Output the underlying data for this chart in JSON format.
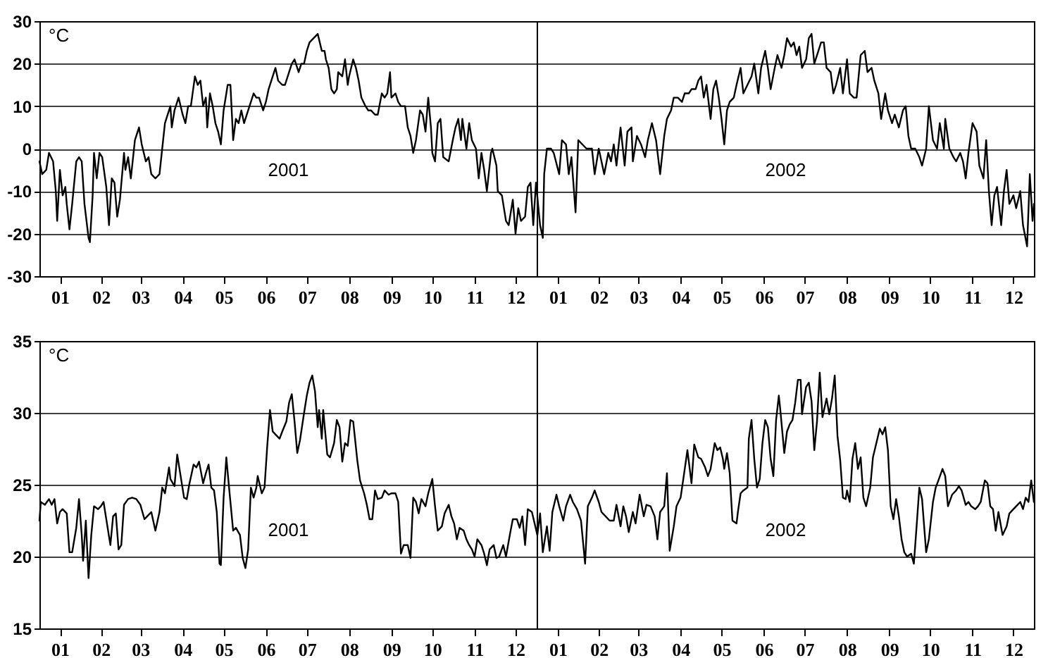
{
  "chart_data": [
    {
      "type": "line",
      "ylabel": "°C",
      "xlim": [
        "2001-01-01",
        "2002-12-31"
      ],
      "ylim": [
        -30,
        30
      ],
      "yticks": [
        -30,
        -20,
        -10,
        0,
        10,
        20,
        30
      ],
      "grid": "y",
      "xticks": [
        {
          "value": "2001-01-16",
          "label": "01"
        },
        {
          "value": "2001-02-15",
          "label": "02"
        },
        {
          "value": "2001-03-16",
          "label": "03"
        },
        {
          "value": "2001-04-16",
          "label": "04"
        },
        {
          "value": "2001-05-16",
          "label": "05"
        },
        {
          "value": "2001-06-16",
          "label": "06"
        },
        {
          "value": "2001-07-16",
          "label": "07"
        },
        {
          "value": "2001-08-16",
          "label": "08"
        },
        {
          "value": "2001-09-16",
          "label": "09"
        },
        {
          "value": "2001-10-16",
          "label": "10"
        },
        {
          "value": "2001-11-16",
          "label": "11"
        },
        {
          "value": "2001-12-16",
          "label": "12"
        },
        {
          "value": "2002-01-16",
          "label": "01"
        },
        {
          "value": "2002-02-15",
          "label": "02"
        },
        {
          "value": "2002-03-16",
          "label": "03"
        },
        {
          "value": "2002-04-16",
          "label": "04"
        },
        {
          "value": "2002-05-16",
          "label": "05"
        },
        {
          "value": "2002-06-16",
          "label": "06"
        },
        {
          "value": "2002-07-16",
          "label": "07"
        },
        {
          "value": "2002-08-16",
          "label": "08"
        },
        {
          "value": "2002-09-16",
          "label": "09"
        },
        {
          "value": "2002-10-16",
          "label": "10"
        },
        {
          "value": "2002-11-16",
          "label": "11"
        },
        {
          "value": "2002-12-16",
          "label": "12"
        }
      ],
      "ref_lines": [
        {
          "axis": "x",
          "value": "2002-01-01",
          "color": "#000000"
        }
      ],
      "annotations": [
        "2001",
        "2002"
      ],
      "x": [
        "2001-01-01",
        "2001-01-03",
        "2001-01-06",
        "2001-01-08",
        "2001-01-11",
        "2001-01-13",
        "2001-01-14",
        "2001-01-16",
        "2001-01-18",
        "2001-01-20",
        "2001-01-21",
        "2001-01-23",
        "2001-01-25",
        "2001-01-28",
        "2001-01-30",
        "2001-02-01",
        "2001-02-03",
        "2001-02-06",
        "2001-02-07",
        "2001-02-09",
        "2001-02-10",
        "2001-02-12",
        "2001-02-14",
        "2001-02-16",
        "2001-02-19",
        "2001-02-21",
        "2001-02-23",
        "2001-02-25",
        "2001-02-27",
        "2001-03-01",
        "2001-03-04",
        "2001-03-05",
        "2001-03-07",
        "2001-03-09",
        "2001-03-12",
        "2001-03-15",
        "2001-03-17",
        "2001-03-20",
        "2001-03-22",
        "2001-03-24",
        "2001-03-27",
        "2001-03-30",
        "2001-04-01",
        "2001-04-03",
        "2001-04-05",
        "2001-04-07",
        "2001-04-08",
        "2001-04-10",
        "2001-04-13",
        "2001-04-16",
        "2001-04-18",
        "2001-04-20",
        "2001-04-22",
        "2001-04-25",
        "2001-04-27",
        "2001-04-29",
        "2001-05-01",
        "2001-05-03",
        "2001-05-04",
        "2001-05-06",
        "2001-05-08",
        "2001-05-10",
        "2001-05-12",
        "2001-05-14",
        "2001-05-16",
        "2001-05-19",
        "2001-05-21",
        "2001-05-23",
        "2001-05-25",
        "2001-05-27",
        "2001-05-29",
        "2001-05-31",
        "2001-06-02",
        "2001-06-04",
        "2001-06-07",
        "2001-06-09",
        "2001-06-11",
        "2001-06-14",
        "2001-06-16",
        "2001-06-18",
        "2001-06-20",
        "2001-06-23",
        "2001-06-25",
        "2001-06-28",
        "2001-06-30",
        "2001-07-03",
        "2001-07-05",
        "2001-07-07",
        "2001-07-10",
        "2001-07-12",
        "2001-07-14",
        "2001-07-16",
        "2001-07-18",
        "2001-07-21",
        "2001-07-24",
        "2001-07-27",
        "2001-07-29",
        "2001-07-30",
        "2001-08-01",
        "2001-08-03",
        "2001-08-05",
        "2001-08-07",
        "2001-08-08",
        "2001-08-11",
        "2001-08-13",
        "2001-08-15",
        "2001-08-16",
        "2001-08-19",
        "2001-08-21",
        "2001-08-23",
        "2001-08-25",
        "2001-08-28",
        "2001-08-30",
        "2001-09-01",
        "2001-09-04",
        "2001-09-06",
        "2001-09-09",
        "2001-09-11",
        "2001-09-13",
        "2001-09-15",
        "2001-09-16",
        "2001-09-19",
        "2001-09-21",
        "2001-09-23",
        "2001-09-26",
        "2001-09-28",
        "2001-09-30",
        "2001-10-02",
        "2001-10-04",
        "2001-10-07",
        "2001-10-09",
        "2001-10-11",
        "2001-10-13",
        "2001-10-15",
        "2001-10-16",
        "2001-10-18",
        "2001-10-20",
        "2001-10-22",
        "2001-10-24",
        "2001-10-28",
        "2001-10-31",
        "2001-11-02",
        "2001-11-04",
        "2001-11-06",
        "2001-11-07",
        "2001-11-10",
        "2001-11-12",
        "2001-11-14",
        "2001-11-17",
        "2001-11-19",
        "2001-11-21",
        "2001-11-23",
        "2001-11-25",
        "2001-11-28",
        "2001-11-29",
        "2001-12-02",
        "2001-12-03",
        "2001-12-06",
        "2001-12-09",
        "2001-12-11",
        "2001-12-14",
        "2001-12-16",
        "2001-12-18",
        "2001-12-20",
        "2001-12-23",
        "2001-12-25",
        "2001-12-27",
        "2001-12-29",
        "2001-12-31",
        "2002-01-03",
        "2002-01-05",
        "2002-01-06",
        "2002-01-08",
        "2002-01-11",
        "2002-01-13",
        "2002-01-17",
        "2002-01-19",
        "2002-01-22",
        "2002-01-24",
        "2002-01-26",
        "2002-01-29",
        "2002-01-31",
        "2002-02-03",
        "2002-02-06",
        "2002-02-10",
        "2002-02-12",
        "2002-02-15",
        "2002-02-17",
        "2002-02-19",
        "2002-02-22",
        "2002-02-24",
        "2002-02-26",
        "2002-02-28",
        "2002-03-03",
        "2002-03-06",
        "2002-03-08",
        "2002-03-11",
        "2002-03-12",
        "2002-03-15",
        "2002-03-18",
        "2002-03-21",
        "2002-03-23",
        "2002-03-26",
        "2002-03-29",
        "2002-04-01",
        "2002-04-04",
        "2002-04-06",
        "2002-04-09",
        "2002-04-11",
        "2002-04-14",
        "2002-04-17",
        "2002-04-19",
        "2002-04-22",
        "2002-04-24",
        "2002-04-27",
        "2002-04-29",
        "2002-05-01",
        "2002-05-03",
        "2002-05-05",
        "2002-05-08",
        "2002-05-10",
        "2002-05-12",
        "2002-05-14",
        "2002-05-16",
        "2002-05-18",
        "2002-05-20",
        "2002-05-22",
        "2002-05-25",
        "2002-05-27",
        "2002-05-30",
        "2002-06-01",
        "2002-06-04",
        "2002-06-07",
        "2002-06-09",
        "2002-06-12",
        "2002-06-14",
        "2002-06-17",
        "2002-06-19",
        "2002-06-21",
        "2002-06-24",
        "2002-06-26",
        "2002-06-29",
        "2002-07-01",
        "2002-07-03",
        "2002-07-06",
        "2002-07-08",
        "2002-07-10",
        "2002-07-12",
        "2002-07-14",
        "2002-07-17",
        "2002-07-19",
        "2002-07-21",
        "2002-07-23",
        "2002-07-25",
        "2002-07-28",
        "2002-07-30",
        "2002-08-01",
        "2002-08-04",
        "2002-08-06",
        "2002-08-08",
        "2002-08-11",
        "2002-08-13",
        "2002-08-16",
        "2002-08-18",
        "2002-08-21",
        "2002-08-23",
        "2002-08-26",
        "2002-08-29",
        "2002-08-31",
        "2002-09-03",
        "2002-09-05",
        "2002-09-08",
        "2002-09-10",
        "2002-09-13",
        "2002-09-15",
        "2002-09-18",
        "2002-09-20",
        "2002-09-23",
        "2002-09-26",
        "2002-09-28",
        "2002-09-30",
        "2002-10-02",
        "2002-10-05",
        "2002-10-08",
        "2002-10-10",
        "2002-10-13",
        "2002-10-15",
        "2002-10-18",
        "2002-10-21",
        "2002-10-23",
        "2002-10-26",
        "2002-10-27",
        "2002-10-30",
        "2002-11-02",
        "2002-11-04",
        "2002-11-07",
        "2002-11-09",
        "2002-11-11",
        "2002-11-13",
        "2002-11-16",
        "2002-11-19",
        "2002-11-21",
        "2002-11-24",
        "2002-11-26",
        "2002-11-28",
        "2002-11-30",
        "2002-12-02",
        "2002-12-04",
        "2002-12-07",
        "2002-12-09",
        "2002-12-11",
        "2002-12-13",
        "2002-12-16",
        "2002-12-18",
        "2002-12-21",
        "2002-12-23",
        "2002-12-26",
        "2002-12-28",
        "2002-12-30",
        "2002-12-31"
      ],
      "series": [
        {
          "color": "#000000",
          "values": [
            -3,
            -6,
            -5,
            -1,
            -3,
            -10,
            -17,
            -5,
            -11,
            -9,
            -13,
            -19,
            -13,
            -3,
            -2,
            -3,
            -13,
            -21,
            -22,
            -11,
            -1,
            -7,
            -1,
            -2,
            -9,
            -18,
            -7,
            -8,
            -16,
            -12,
            -1,
            -5,
            -2,
            -7,
            2,
            5,
            1,
            -3,
            -2,
            -6,
            -7,
            -6,
            0,
            6,
            8,
            10,
            5,
            9,
            12,
            8,
            6,
            10,
            10,
            17,
            15,
            16,
            10,
            12,
            5,
            13,
            10,
            6,
            4,
            1,
            9,
            15,
            15,
            2,
            7,
            6,
            9,
            6,
            8,
            10,
            13,
            12,
            12,
            9,
            11,
            14,
            16,
            19,
            16,
            15,
            15,
            18,
            20,
            21,
            18,
            20,
            20,
            23,
            25,
            26,
            27,
            23,
            23,
            21,
            19,
            14,
            13,
            14,
            18,
            17,
            21,
            15,
            17,
            21,
            19,
            16,
            12,
            10,
            9,
            9,
            8,
            8,
            13,
            12,
            13,
            18,
            12,
            13,
            11,
            10,
            10,
            5,
            3,
            -1,
            2,
            9,
            8,
            4,
            12,
            5,
            -1,
            -3,
            6,
            7,
            -2,
            -3,
            2,
            5,
            7,
            2,
            7,
            0,
            6,
            2,
            0,
            -7,
            -1,
            -5,
            -10,
            -1,
            0,
            -4,
            -10,
            -11,
            -17,
            -18,
            -12,
            -20,
            -14,
            -17,
            -16,
            -9,
            -8,
            -18,
            -8,
            -18,
            -21,
            -6,
            0,
            0,
            -1,
            -6,
            2,
            1,
            -6,
            -2,
            -15,
            2,
            1,
            0,
            0,
            -6,
            0,
            -3,
            -6,
            -1,
            -3,
            1,
            -4,
            5,
            -4,
            4,
            5,
            -3,
            3,
            1,
            -2,
            2,
            6,
            2,
            -6,
            3,
            7,
            9,
            12,
            12,
            11,
            13,
            13,
            14,
            14,
            16,
            17,
            12,
            15,
            7,
            14,
            16,
            12,
            7,
            1,
            9,
            11,
            12,
            15,
            19,
            13,
            15,
            17,
            20,
            13,
            19,
            23,
            19,
            14,
            19,
            22,
            19,
            22,
            26,
            24,
            25,
            22,
            24,
            19,
            21,
            26,
            27,
            20,
            22,
            25,
            25,
            19,
            18,
            13,
            15,
            19,
            13,
            21,
            13,
            12,
            12,
            22,
            23,
            18,
            19,
            16,
            13,
            7,
            13,
            9,
            6,
            8,
            5,
            9,
            10,
            3,
            0,
            0,
            -2,
            -4,
            0,
            10,
            2,
            0,
            6,
            0,
            7,
            0,
            -2,
            -3,
            -1,
            -3,
            -7,
            -1,
            6,
            4,
            -4,
            -7,
            2,
            -10,
            -18,
            -11,
            -9,
            -18,
            -10,
            -5,
            -13,
            -11,
            -14,
            -10,
            -18,
            -23,
            -6,
            -17,
            -13
          ]
        }
      ]
    },
    {
      "type": "line",
      "ylabel": "°C",
      "xlim": [
        "2001-01-01",
        "2002-12-31"
      ],
      "ylim": [
        15,
        35
      ],
      "yticks": [
        15,
        20,
        25,
        30,
        35
      ],
      "grid": "y",
      "xticks": [
        {
          "value": "2001-01-16",
          "label": "01"
        },
        {
          "value": "2001-02-15",
          "label": "02"
        },
        {
          "value": "2001-03-16",
          "label": "03"
        },
        {
          "value": "2001-04-16",
          "label": "04"
        },
        {
          "value": "2001-05-16",
          "label": "05"
        },
        {
          "value": "2001-06-16",
          "label": "06"
        },
        {
          "value": "2001-07-16",
          "label": "07"
        },
        {
          "value": "2001-08-16",
          "label": "08"
        },
        {
          "value": "2001-09-16",
          "label": "09"
        },
        {
          "value": "2001-10-16",
          "label": "10"
        },
        {
          "value": "2001-11-16",
          "label": "11"
        },
        {
          "value": "2001-12-16",
          "label": "12"
        },
        {
          "value": "2002-01-16",
          "label": "01"
        },
        {
          "value": "2002-02-15",
          "label": "02"
        },
        {
          "value": "2002-03-16",
          "label": "03"
        },
        {
          "value": "2002-04-16",
          "label": "04"
        },
        {
          "value": "2002-05-16",
          "label": "05"
        },
        {
          "value": "2002-06-16",
          "label": "06"
        },
        {
          "value": "2002-07-16",
          "label": "07"
        },
        {
          "value": "2002-08-16",
          "label": "08"
        },
        {
          "value": "2002-09-16",
          "label": "09"
        },
        {
          "value": "2002-10-16",
          "label": "10"
        },
        {
          "value": "2002-11-16",
          "label": "11"
        },
        {
          "value": "2002-12-16",
          "label": "12"
        }
      ],
      "ref_lines": [
        {
          "axis": "x",
          "value": "2002-01-01",
          "color": "#000000"
        }
      ],
      "annotations": [
        "2001",
        "2002"
      ],
      "x": [
        "2001-01-01",
        "2001-01-02",
        "2001-01-05",
        "2001-01-08",
        "2001-01-10",
        "2001-01-12",
        "2001-01-14",
        "2001-01-16",
        "2001-01-18",
        "2001-01-21",
        "2001-01-23",
        "2001-01-25",
        "2001-01-28",
        "2001-01-30",
        "2001-02-01",
        "2001-02-02",
        "2001-02-04",
        "2001-02-06",
        "2001-02-08",
        "2001-02-10",
        "2001-02-13",
        "2001-02-15",
        "2001-02-17",
        "2001-02-19",
        "2001-02-22",
        "2001-02-24",
        "2001-02-26",
        "2001-02-28",
        "2001-03-02",
        "2001-03-04",
        "2001-03-07",
        "2001-03-10",
        "2001-03-13",
        "2001-03-16",
        "2001-03-19",
        "2001-03-21",
        "2001-03-24",
        "2001-03-27",
        "2001-03-30",
        "2001-04-01",
        "2001-04-03",
        "2001-04-06",
        "2001-04-07",
        "2001-04-10",
        "2001-04-12",
        "2001-04-14",
        "2001-04-17",
        "2001-04-19",
        "2001-04-21",
        "2001-04-24",
        "2001-04-26",
        "2001-04-28",
        "2001-05-01",
        "2001-05-03",
        "2001-05-05",
        "2001-05-07",
        "2001-05-09",
        "2001-05-11",
        "2001-05-13",
        "2001-05-14",
        "2001-05-16",
        "2001-05-18",
        "2001-05-20",
        "2001-05-23",
        "2001-05-25",
        "2001-05-28",
        "2001-05-30",
        "2001-06-01",
        "2001-06-03",
        "2001-06-05",
        "2001-06-07",
        "2001-06-09",
        "2001-06-10",
        "2001-06-13",
        "2001-06-15",
        "2001-06-17",
        "2001-06-19",
        "2001-06-21",
        "2001-06-24",
        "2001-06-26",
        "2001-06-28",
        "2001-07-01",
        "2001-07-03",
        "2001-07-05",
        "2001-07-07",
        "2001-07-09",
        "2001-07-11",
        "2001-07-14",
        "2001-07-16",
        "2001-07-18",
        "2001-07-20",
        "2001-07-22",
        "2001-07-24",
        "2001-07-25",
        "2001-07-27",
        "2001-07-28",
        "2001-07-31",
        "2001-08-02",
        "2001-08-05",
        "2001-08-07",
        "2001-08-09",
        "2001-08-11",
        "2001-08-13",
        "2001-08-15",
        "2001-08-17",
        "2001-08-19",
        "2001-08-22",
        "2001-08-24",
        "2001-08-27",
        "2001-08-29",
        "2001-08-31",
        "2001-09-02",
        "2001-09-04",
        "2001-09-06",
        "2001-09-09",
        "2001-09-11",
        "2001-09-14",
        "2001-09-16",
        "2001-09-19",
        "2001-09-21",
        "2001-09-23",
        "2001-09-25",
        "2001-09-28",
        "2001-09-30",
        "2001-10-02",
        "2001-10-04",
        "2001-10-06",
        "2001-10-08",
        "2001-10-11",
        "2001-10-13",
        "2001-10-16",
        "2001-10-18",
        "2001-10-20",
        "2001-10-23",
        "2001-10-25",
        "2001-10-28",
        "2001-10-30",
        "2001-11-01",
        "2001-11-03",
        "2001-11-05",
        "2001-11-08",
        "2001-11-10",
        "2001-11-12",
        "2001-11-14",
        "2001-11-16",
        "2001-11-18",
        "2001-11-21",
        "2001-11-23",
        "2001-11-25",
        "2001-11-27",
        "2001-11-30",
        "2001-12-02",
        "2001-12-04",
        "2001-12-07",
        "2001-12-09",
        "2001-12-12",
        "2001-12-14",
        "2001-12-17",
        "2001-12-19",
        "2001-12-21",
        "2001-12-23",
        "2001-12-25",
        "2001-12-28",
        "2002-01-01",
        "2002-01-03",
        "2002-01-05",
        "2002-01-08",
        "2002-01-10",
        "2002-01-12",
        "2002-01-15",
        "2002-01-17",
        "2002-01-20",
        "2002-01-22",
        "2002-01-25",
        "2002-01-27",
        "2002-01-30",
        "2002-02-02",
        "2002-02-03",
        "2002-02-05",
        "2002-02-07",
        "2002-02-10",
        "2002-02-12",
        "2002-02-15",
        "2002-02-17",
        "2002-02-20",
        "2002-02-23",
        "2002-02-26",
        "2002-02-28",
        "2002-03-03",
        "2002-03-05",
        "2002-03-07",
        "2002-03-09",
        "2002-03-12",
        "2002-03-14",
        "2002-03-17",
        "2002-03-20",
        "2002-03-22",
        "2002-03-25",
        "2002-03-28",
        "2002-03-30",
        "2002-04-01",
        "2002-04-04",
        "2002-04-06",
        "2002-04-08",
        "2002-04-11",
        "2002-04-13",
        "2002-04-16",
        "2002-04-18",
        "2002-04-21",
        "2002-04-24",
        "2002-04-26",
        "2002-04-29",
        "2002-05-01",
        "2002-05-04",
        "2002-05-06",
        "2002-05-08",
        "2002-05-11",
        "2002-05-13",
        "2002-05-15",
        "2002-05-17",
        "2002-05-18",
        "2002-05-20",
        "2002-05-22",
        "2002-05-24",
        "2002-05-27",
        "2002-05-28",
        "2002-05-30",
        "2002-06-01",
        "2002-06-04",
        "2002-06-05",
        "2002-06-07",
        "2002-06-09",
        "2002-06-11",
        "2002-06-13",
        "2002-06-15",
        "2002-06-17",
        "2002-06-19",
        "2002-06-21",
        "2002-06-23",
        "2002-06-25",
        "2002-06-27",
        "2002-06-28",
        "2002-07-01",
        "2002-07-03",
        "2002-07-05",
        "2002-07-07",
        "2002-07-09",
        "2002-07-11",
        "2002-07-13",
        "2002-07-14",
        "2002-07-17",
        "2002-07-19",
        "2002-07-21",
        "2002-07-23",
        "2002-07-25",
        "2002-07-27",
        "2002-07-29",
        "2002-08-01",
        "2002-08-03",
        "2002-08-05",
        "2002-08-07",
        "2002-08-09",
        "2002-08-11",
        "2002-08-13",
        "2002-08-15",
        "2002-08-16",
        "2002-08-18",
        "2002-08-20",
        "2002-08-22",
        "2002-08-24",
        "2002-08-26",
        "2002-08-28",
        "2002-08-30",
        "2002-09-02",
        "2002-09-04",
        "2002-09-06",
        "2002-09-09",
        "2002-09-11",
        "2002-09-13",
        "2002-09-15",
        "2002-09-17",
        "2002-09-19",
        "2002-09-21",
        "2002-09-23",
        "2002-09-25",
        "2002-09-27",
        "2002-09-29",
        "2002-10-02",
        "2002-10-04",
        "2002-10-06",
        "2002-10-08",
        "2002-10-10",
        "2002-10-13",
        "2002-10-15",
        "2002-10-18",
        "2002-10-20",
        "2002-10-22",
        "2002-10-25",
        "2002-10-27",
        "2002-10-29",
        "2002-11-01",
        "2002-11-04",
        "2002-11-06",
        "2002-11-08",
        "2002-11-11",
        "2002-11-13",
        "2002-11-15",
        "2002-11-18",
        "2002-11-20",
        "2002-11-22",
        "2002-11-25",
        "2002-11-27",
        "2002-11-29",
        "2002-12-01",
        "2002-12-03",
        "2002-12-05",
        "2002-12-08",
        "2002-12-11",
        "2002-12-13",
        "2002-12-16",
        "2002-12-18",
        "2002-12-21",
        "2002-12-23",
        "2002-12-25",
        "2002-12-27",
        "2002-12-29",
        "2002-12-31"
      ],
      "series": [
        {
          "color": "#000000",
          "values": [
            22.5,
            23.8,
            23.6,
            24,
            23.6,
            24,
            22.3,
            23.1,
            23.3,
            23,
            20.3,
            20.3,
            22,
            24,
            21.5,
            19.7,
            22.5,
            18.5,
            21.5,
            23.5,
            23.3,
            23.5,
            23.8,
            22.6,
            20.8,
            22.8,
            23,
            20.5,
            20.8,
            23.6,
            24,
            24.1,
            24,
            23.6,
            22.6,
            22.8,
            23.1,
            21.8,
            23.1,
            24.8,
            24.4,
            26.2,
            25.4,
            24.9,
            27.1,
            25.9,
            24.1,
            24,
            25.1,
            26.4,
            26.2,
            26.6,
            25.1,
            25.8,
            26.4,
            24.8,
            24.6,
            23.1,
            19.5,
            19.4,
            24.1,
            26.9,
            24.8,
            21.8,
            22,
            21.5,
            19.9,
            19.2,
            20.5,
            24.8,
            24.1,
            24.8,
            25.6,
            24.4,
            24.8,
            27.7,
            30.2,
            28.7,
            28.4,
            28.2,
            28.7,
            29.4,
            30.7,
            31.3,
            29.4,
            27.2,
            28.1,
            30,
            31.2,
            32.1,
            32.6,
            31.5,
            29,
            30.2,
            28.2,
            30.2,
            27.1,
            26.9,
            27.9,
            29.5,
            29,
            26.6,
            27.9,
            27.7,
            29.5,
            29.4,
            26.7,
            25.3,
            24.4,
            23.6,
            22.6,
            22.6,
            24.6,
            24,
            24.1,
            24.6,
            24.3,
            24.4,
            24.4,
            23.8,
            20.2,
            20.8,
            20.8,
            19.9,
            24.1,
            23.8,
            23,
            24,
            23.5,
            24.4,
            25.4,
            23.5,
            21.8,
            22.1,
            23,
            23.6,
            22.8,
            22.3,
            21.2,
            22,
            21.8,
            21.2,
            20.8,
            20.5,
            20,
            21.2,
            20.8,
            20.2,
            19.4,
            20.5,
            20.8,
            19.9,
            20,
            20.8,
            20,
            21.6,
            22.6,
            22.6,
            22,
            22.8,
            20.8,
            23.3,
            23.1,
            21.5,
            23,
            20.3,
            22.1,
            20.4,
            23.1,
            24.3,
            23.5,
            22.5,
            23.5,
            24.3,
            23.8,
            23.3,
            22.5,
            21.5,
            19.5,
            23.5,
            24.1,
            24.6,
            23.8,
            23.1,
            22.8,
            22.5,
            22.5,
            23.6,
            22.1,
            23.5,
            22.8,
            21.7,
            23.1,
            22.3,
            24.3,
            22.8,
            23.6,
            23.5,
            22.8,
            21.2,
            23.1,
            23.5,
            25.8,
            20.4,
            22.1,
            23.5,
            24.1,
            25.4,
            27.4,
            25.1,
            27.8,
            26.9,
            26.8,
            26.2,
            25.6,
            26.1,
            27.9,
            27.4,
            27.6,
            26.8,
            26.1,
            27.2,
            25.8,
            22.5,
            22.3,
            23.1,
            24.4,
            24.6,
            24.8,
            28.2,
            29.5,
            26.8,
            24.8,
            25.4,
            27.9,
            29.5,
            29,
            26.8,
            25.6,
            29.5,
            31.2,
            30.3,
            27.2,
            28.7,
            29.2,
            29.5,
            30.7,
            32.3,
            32.3,
            29.9,
            31.8,
            32.1,
            30.8,
            27.4,
            29.4,
            32.8,
            29.7,
            31,
            29.9,
            31,
            32.6,
            28.4,
            26.7,
            24.1,
            24,
            24.6,
            23.8,
            26.8,
            27.9,
            26.1,
            26.9,
            24.1,
            23.5,
            24.8,
            26.9,
            27.7,
            28.9,
            28.5,
            29,
            27.4,
            23.5,
            22.6,
            24,
            22.8,
            21.2,
            20.3,
            20,
            20.2,
            19.5,
            22.1,
            24.8,
            24,
            20.3,
            21.2,
            23.8,
            24.8,
            25.3,
            26.1,
            25.6,
            23.5,
            24.3,
            24.6,
            24.9,
            24.6,
            23.6,
            23.8,
            23.5,
            23.3,
            23.5,
            23.8,
            25.3,
            25.1,
            23.5,
            23.3,
            21.8,
            23.1,
            21.5,
            22.1,
            23,
            23.3,
            23.5,
            23.8,
            23.3,
            24.1,
            23.8,
            25.3,
            23.8
          ]
        }
      ]
    }
  ]
}
